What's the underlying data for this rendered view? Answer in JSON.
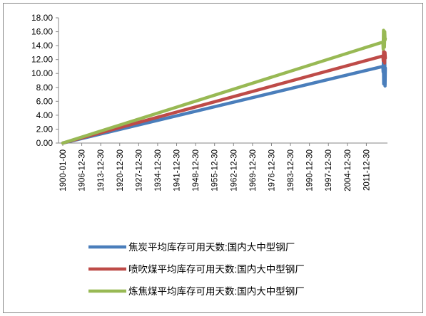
{
  "chart_data": {
    "type": "line",
    "title": "",
    "xlabel": "",
    "ylabel": "",
    "ylim": [
      0,
      18
    ],
    "y_ticks": [
      "0.00",
      "2.00",
      "4.00",
      "6.00",
      "8.00",
      "10.00",
      "12.00",
      "14.00",
      "16.00",
      "18.00"
    ],
    "x_ticks": [
      "1900-01-00",
      "1906-12-30",
      "1913-12-30",
      "1920-12-30",
      "1927-12-30",
      "1934-12-30",
      "1941-12-30",
      "1948-12-30",
      "1955-12-30",
      "1962-12-30",
      "1969-12-30",
      "1976-12-30",
      "1983-12-30",
      "1990-12-30",
      "1997-12-30",
      "2004-12-30",
      "2011-12-30"
    ],
    "x_range": [
      "1900-01-00",
      "2018-12-30"
    ],
    "grid": false,
    "legend_position": "bottom",
    "series": [
      {
        "name": "焦炭平均库存可用天数:国内大中型钢厂",
        "color": "#4a7ebb",
        "points": [
          [
            "1900-01-00",
            0
          ],
          [
            "2017-12-30",
            11.0
          ]
        ],
        "recent": [
          11.0,
          10.2,
          12.0,
          8.5,
          11.5,
          9.0,
          10.5,
          12.2,
          8.2,
          10.8
        ]
      },
      {
        "name": "喷吹煤平均库存可用天数:国内大中型钢厂",
        "color": "#be4b48",
        "points": [
          [
            "1900-01-00",
            0
          ],
          [
            "2017-12-30",
            12.5
          ]
        ],
        "recent": [
          12.5,
          11.8,
          13.2,
          12.0,
          12.8,
          11.5,
          13.0,
          12.2
        ]
      },
      {
        "name": "炼焦煤平均库存可用天数:国内大中型钢厂",
        "color": "#98b954",
        "points": [
          [
            "1900-01-00",
            0
          ],
          [
            "2017-12-30",
            14.5
          ]
        ],
        "recent": [
          14.5,
          13.5,
          16.2,
          14.0,
          15.5,
          13.8,
          16.0,
          14.8,
          15.0
        ]
      }
    ]
  }
}
